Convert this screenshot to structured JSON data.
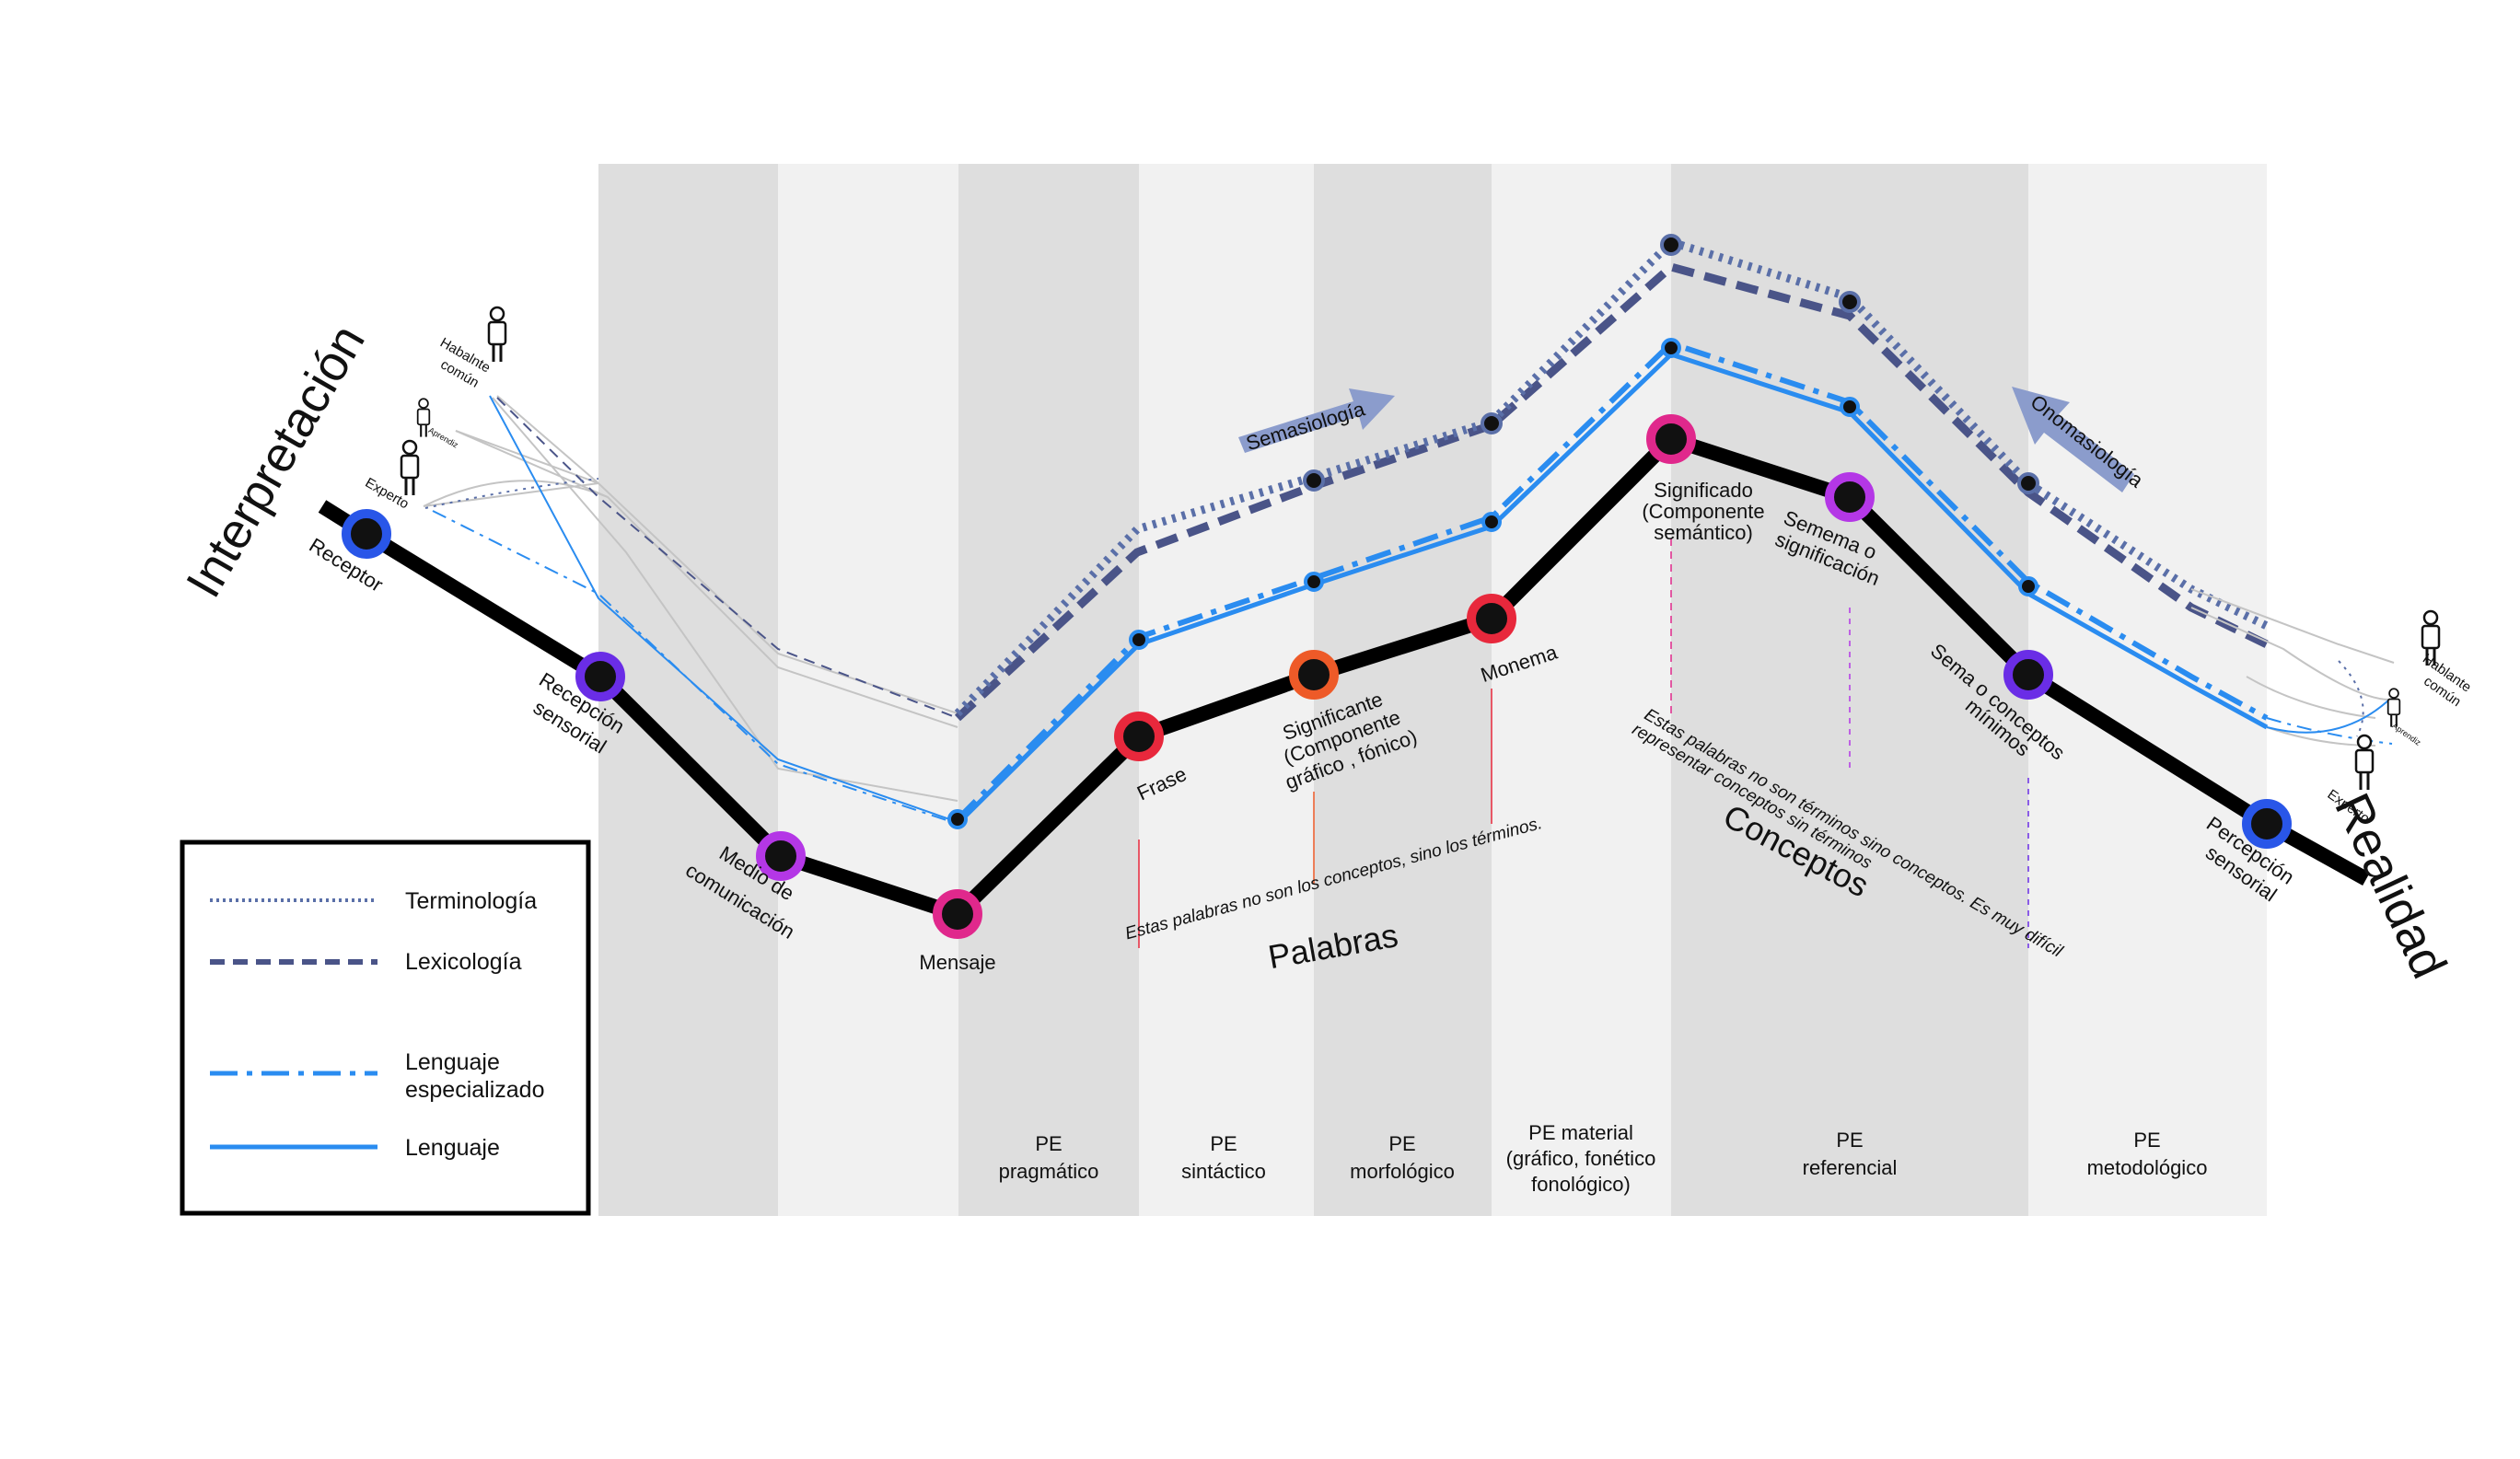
{
  "title_left": "Interpretación",
  "title_right": "Realidad",
  "bands": [
    {
      "shade": "dark",
      "label_lines": []
    },
    {
      "shade": "light",
      "label_lines": []
    },
    {
      "shade": "dark",
      "label_lines": [
        "PE",
        "pragmático"
      ]
    },
    {
      "shade": "light",
      "label_lines": [
        "PE",
        "sintáctico"
      ]
    },
    {
      "shade": "dark",
      "label_lines": [
        "PE",
        "morfológico"
      ]
    },
    {
      "shade": "light",
      "label_lines": [
        "PE material",
        "(gráfico, fonético",
        "fonológico)"
      ]
    },
    {
      "shade": "dark",
      "label_lines": [
        "PE",
        "referencial"
      ]
    },
    {
      "shade": "light",
      "label_lines": [
        "PE",
        "metodológico"
      ]
    }
  ],
  "stations": [
    {
      "id": "receptor",
      "label_lines": [
        "Receptor"
      ],
      "color": "#2956e8"
    },
    {
      "id": "recepcion-sensorial",
      "label_lines": [
        "Recepción",
        "sensorial"
      ],
      "color": "#6a2de6"
    },
    {
      "id": "medio-comunicacion",
      "label_lines": [
        "Medio de",
        "comunicación"
      ],
      "color": "#b437e6"
    },
    {
      "id": "mensaje",
      "label_lines": [
        "Mensaje"
      ],
      "color": "#e0288c"
    },
    {
      "id": "frase",
      "label_lines": [
        "Frase"
      ],
      "color": "#e8283c"
    },
    {
      "id": "significante",
      "label_lines": [
        "Significante",
        "(Componente",
        "gráfico , fónico)"
      ],
      "color": "#ee5a28"
    },
    {
      "id": "monema",
      "label_lines": [
        "Monema"
      ],
      "color": "#e8283c"
    },
    {
      "id": "significado",
      "label_lines": [
        "Significado",
        "(Componente",
        "semántico)"
      ],
      "color": "#e0288c"
    },
    {
      "id": "semema",
      "label_lines": [
        "Semema o",
        "significación"
      ],
      "color": "#b437e6"
    },
    {
      "id": "sema",
      "label_lines": [
        "Sema o conceptos",
        "mínimos"
      ],
      "color": "#6a2de6"
    },
    {
      "id": "percepcion-sensorial",
      "label_lines": [
        "Percepción",
        "sensorial"
      ],
      "color": "#2956e8"
    }
  ],
  "group_labels": {
    "palabras": "Palabras",
    "conceptos": "Conceptos"
  },
  "notes": {
    "palabras": "Estas palabras no son los conceptos, sino los términos.",
    "conceptos_1": "Estas palabras no son términos sino conceptos. Es muy difícil",
    "conceptos_2": "representar conceptos sin términos"
  },
  "arrows": {
    "semasiologia": "Semasiología",
    "onomasiologia": "Onomasiología"
  },
  "people_left": {
    "habitual_1": "Habalnte",
    "habitual_2": "común",
    "aprendiz": "Aprendiz",
    "experto": "Experto"
  },
  "people_right": {
    "habitual_1": "Hablante",
    "habitual_2": "común",
    "aprendiz": "Aprendiz",
    "experto": "Experto"
  },
  "legend": [
    {
      "label_lines": [
        "Terminología"
      ],
      "style": "dotted",
      "color": "#5a6fa8"
    },
    {
      "label_lines": [
        "Lexicología"
      ],
      "style": "dashed",
      "color": "#4a5488"
    },
    {
      "label_lines": [
        "Lenguaje",
        "especializado"
      ],
      "style": "dashdot",
      "color": "#2a8cf0"
    },
    {
      "label_lines": [
        "Lenguaje"
      ],
      "style": "solid",
      "color": "#2a8cf0"
    }
  ],
  "colors": {
    "band_dark": "#dedede",
    "band_light": "#f1f1f1",
    "main_line": "#000000",
    "terminologia": "#5a6fa8",
    "lexicologia": "#4a5488",
    "lenguaje": "#2a8cf0",
    "arrow": "#8b9ccc"
  }
}
